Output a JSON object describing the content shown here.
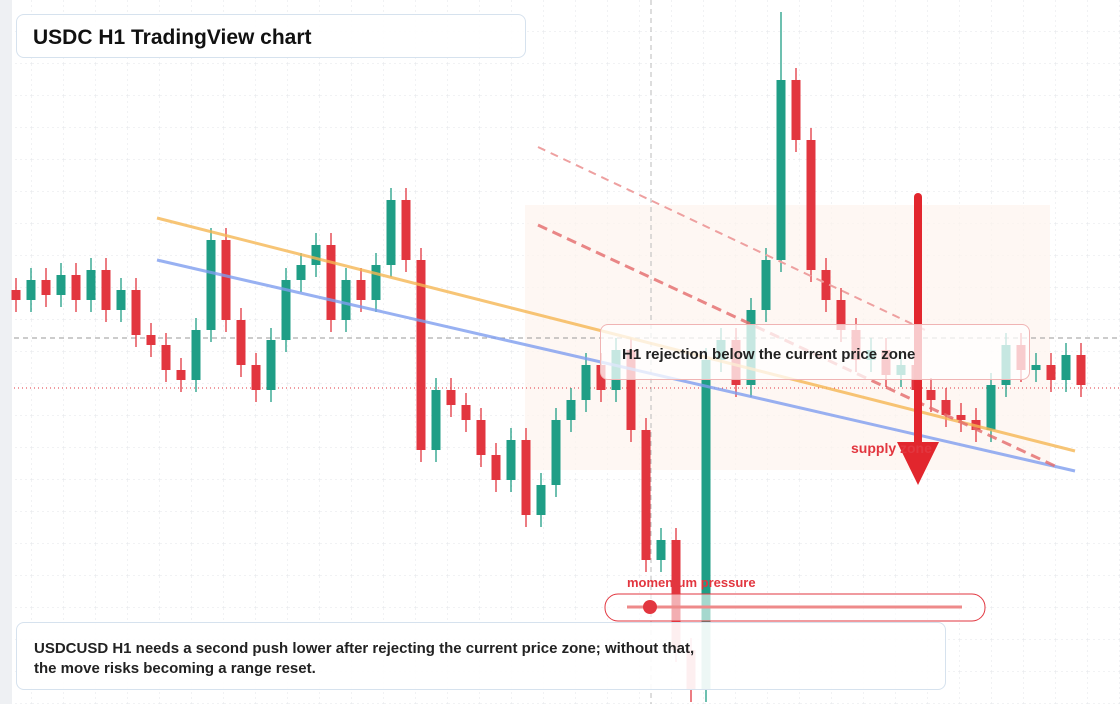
{
  "chart_data": {
    "type": "candlestick",
    "title": "USDC H1 TradingView chart",
    "annotation": "H1 rejection below the current price zone",
    "zone_label": "supply zone",
    "indicator_label": "momentum pressure",
    "caption": "USDCUSD H1 needs a second push lower after rejecting the current price zone; without that, the move risks becoming a range reset.",
    "up_color": "#1f9e86",
    "down_color": "#e2363f",
    "ylim": [
      0,
      704
    ],
    "open": [
      414,
      404,
      424,
      409,
      429,
      404,
      434,
      394,
      414,
      369,
      359,
      334,
      324,
      374,
      464,
      384,
      339,
      314,
      364,
      424,
      439,
      459,
      384,
      424,
      404,
      439,
      504,
      444,
      254,
      314,
      299,
      284,
      249,
      224,
      264,
      189,
      219,
      284,
      304,
      339,
      314,
      354,
      274,
      144,
      164,
      54,
      14,
      344,
      364,
      319,
      394,
      444,
      624,
      564,
      434,
      404,
      374,
      344,
      354,
      329,
      339,
      314,
      304,
      289,
      284,
      274,
      319,
      359,
      334,
      339,
      324,
      349
    ],
    "high": [
      426,
      436,
      436,
      441,
      441,
      446,
      446,
      426,
      426,
      381,
      371,
      346,
      386,
      476,
      476,
      396,
      351,
      376,
      436,
      451,
      471,
      471,
      436,
      436,
      451,
      516,
      516,
      456,
      326,
      326,
      311,
      296,
      261,
      276,
      276,
      231,
      296,
      316,
      351,
      351,
      366,
      366,
      286,
      176,
      176,
      66,
      356,
      376,
      376,
      406,
      456,
      692,
      636,
      576,
      446,
      416,
      386,
      366,
      366,
      351,
      351,
      326,
      316,
      301,
      296,
      331,
      371,
      371,
      351,
      351,
      361,
      361
    ],
    "low": [
      392,
      392,
      397,
      397,
      392,
      392,
      382,
      382,
      357,
      347,
      322,
      312,
      312,
      362,
      372,
      327,
      302,
      302,
      352,
      412,
      427,
      372,
      372,
      392,
      392,
      427,
      432,
      242,
      242,
      287,
      272,
      237,
      212,
      212,
      177,
      177,
      207,
      272,
      292,
      302,
      302,
      262,
      132,
      132,
      42,
      2,
      2,
      332,
      307,
      307,
      382,
      432,
      552,
      422,
      392,
      362,
      332,
      332,
      317,
      317,
      302,
      292,
      277,
      272,
      262,
      262,
      307,
      322,
      322,
      312,
      312,
      307
    ],
    "close": [
      404,
      424,
      409,
      429,
      404,
      434,
      394,
      414,
      369,
      359,
      334,
      324,
      374,
      464,
      384,
      339,
      314,
      364,
      424,
      439,
      459,
      384,
      424,
      404,
      439,
      504,
      444,
      254,
      314,
      299,
      284,
      249,
      224,
      264,
      189,
      219,
      284,
      304,
      339,
      314,
      354,
      274,
      144,
      164,
      54,
      14,
      344,
      364,
      319,
      394,
      444,
      624,
      564,
      434,
      404,
      374,
      344,
      354,
      329,
      339,
      314,
      304,
      289,
      284,
      274,
      319,
      359,
      334,
      339,
      324,
      349,
      319
    ]
  }
}
